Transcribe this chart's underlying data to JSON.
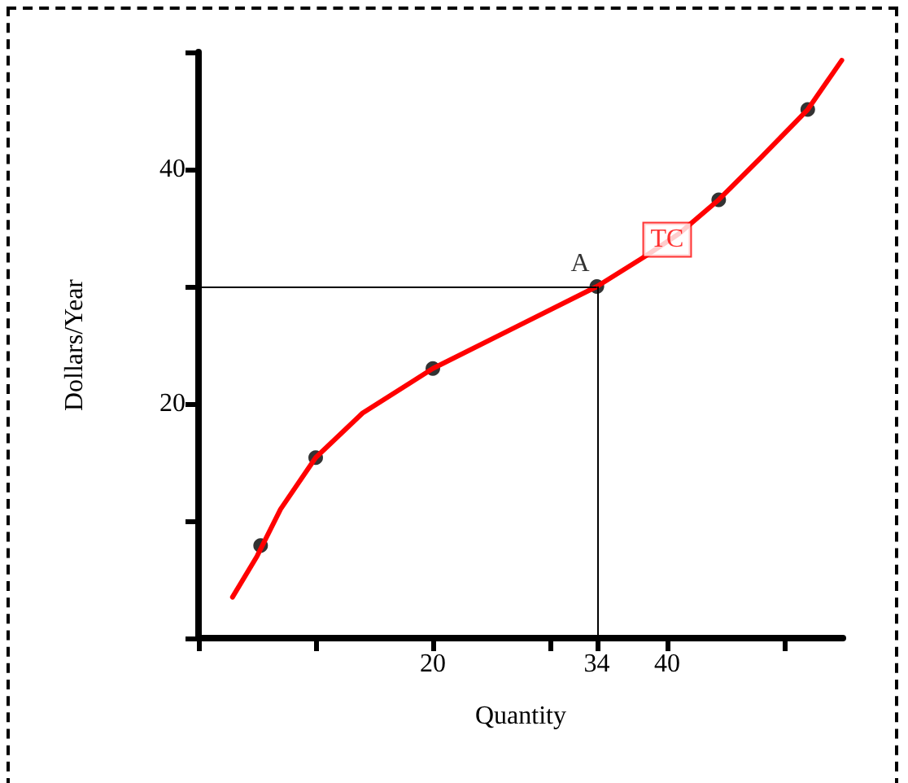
{
  "chart_data": {
    "type": "line",
    "xlabel": "Quantity",
    "ylabel": "Dollars/Year",
    "xlim": [
      0,
      55
    ],
    "ylim": [
      0,
      50
    ],
    "xticks": [
      {
        "value": 0,
        "label": null
      },
      {
        "value": 10,
        "label": null
      },
      20,
      {
        "value": 30,
        "label": null
      },
      34,
      40,
      {
        "value": 50,
        "label": null
      }
    ],
    "yticks": [
      {
        "value": 0,
        "label": null
      },
      {
        "value": 10,
        "label": null
      },
      20,
      {
        "value": 30,
        "label": null
      },
      40,
      {
        "value": 50,
        "label": null
      }
    ],
    "grid": false,
    "series": [
      {
        "color": "#ff0000",
        "marker": "none",
        "line_style": "solid",
        "x": [
          2.9,
          5,
          7,
          10,
          14,
          20,
          27,
          34,
          38,
          41,
          44.4,
          48,
          52,
          54.9
        ],
        "values": [
          3.5,
          7,
          11,
          15.4,
          19.2,
          23,
          26.5,
          30,
          32.5,
          34.5,
          37.4,
          41,
          45.1,
          49.3
        ]
      },
      {
        "type": "scatter",
        "color": "#000000",
        "marker": "circle",
        "x": [
          5.3,
          10,
          20,
          34,
          44.4,
          52
        ],
        "values": [
          7.9,
          15.4,
          23,
          30,
          37.4,
          45.1
        ]
      }
    ],
    "ref_lines": [
      {
        "axis": "y",
        "value": 30,
        "color": "#000000"
      },
      {
        "axis": "x",
        "value": 34,
        "color": "#000000"
      }
    ],
    "annotations": [
      {
        "text": "A",
        "x": 34,
        "y": 30
      },
      {
        "text": "TC",
        "x": 40,
        "y": 34
      }
    ]
  }
}
